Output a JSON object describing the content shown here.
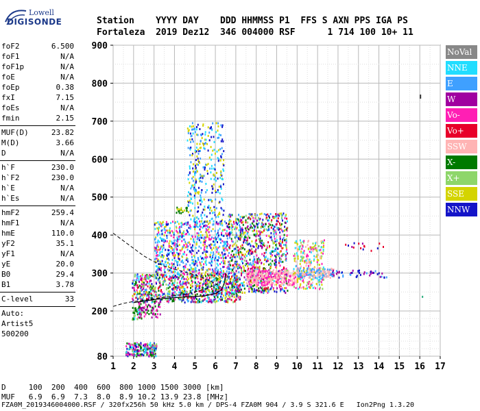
{
  "logo": {
    "line1": "Lowell",
    "line2": "DIGISONDE"
  },
  "header": {
    "line1": "Station    YYYY DAY    DDD HHMMSS P1  FFS S AXN PPS IGA PS",
    "line2": "Fortaleza  2019 Dez12  346 004000 RSF      1 714 100 10+ 11"
  },
  "params": {
    "group1": [
      {
        "k": "foF2",
        "v": "6.500"
      },
      {
        "k": "foF1",
        "v": "N/A"
      },
      {
        "k": "foF1p",
        "v": "N/A"
      },
      {
        "k": "foE",
        "v": "N/A"
      },
      {
        "k": "foEp",
        "v": "0.38"
      },
      {
        "k": "fxI",
        "v": "7.15"
      },
      {
        "k": "foEs",
        "v": "N/A"
      },
      {
        "k": "fmin",
        "v": "2.15"
      }
    ],
    "group2": [
      {
        "k": "MUF(D)",
        "v": "23.82"
      },
      {
        "k": "M(D)",
        "v": "3.66"
      },
      {
        "k": "D",
        "v": "N/A"
      }
    ],
    "group3": [
      {
        "k": "h`F",
        "v": "230.0"
      },
      {
        "k": "h`F2",
        "v": "230.0"
      },
      {
        "k": "h`E",
        "v": "N/A"
      },
      {
        "k": "h`Es",
        "v": "N/A"
      }
    ],
    "group4": [
      {
        "k": "hmF2",
        "v": "259.4"
      },
      {
        "k": "hmF1",
        "v": "N/A"
      },
      {
        "k": "hmE",
        "v": "110.0"
      },
      {
        "k": "yF2",
        "v": "35.1"
      },
      {
        "k": "yF1",
        "v": "N/A"
      },
      {
        "k": "yE",
        "v": "20.0"
      },
      {
        "k": "B0",
        "v": "29.4"
      },
      {
        "k": "B1",
        "v": "3.78"
      }
    ],
    "group5": [
      {
        "k": "C-level",
        "v": "33"
      }
    ],
    "auto": [
      "Auto:",
      "Artist5",
      "500200"
    ]
  },
  "legend": [
    {
      "label": "NoVal",
      "color": "#888888"
    },
    {
      "label": "NNE",
      "color": "#22ddff"
    },
    {
      "label": "E",
      "color": "#3fa0ff"
    },
    {
      "label": "W",
      "color": "#a000a0"
    },
    {
      "label": "Vo-",
      "color": "#ff1fb4"
    },
    {
      "label": "Vo+",
      "color": "#e8002a"
    },
    {
      "label": "SSW",
      "color": "#ffb4b4"
    },
    {
      "label": "X-",
      "color": "#007a00"
    },
    {
      "label": "X+",
      "color": "#8ed66a"
    },
    {
      "label": "SSE",
      "color": "#d4d400"
    },
    {
      "label": "NNW",
      "color": "#1414c8"
    }
  ],
  "chart_data": {
    "type": "scatter",
    "xlim": [
      1,
      17
    ],
    "ylim": [
      80,
      900
    ],
    "x_ticks": [
      "1",
      "2",
      "3",
      "4",
      "5",
      "6",
      "7",
      "8",
      "9",
      "10",
      "11",
      "12",
      "13",
      "14",
      "15",
      "16",
      "17"
    ],
    "y_ticks": [
      "80",
      "200",
      "300",
      "400",
      "500",
      "600",
      "700",
      "800",
      "900"
    ],
    "grid": true,
    "legend_position": "right"
  },
  "bottom": {
    "line1": "D     100  200  400  600  800 1000 1500 3000 [km]",
    "line2": "MUF   6.9  6.9  7.3  8.0  8.9 10.2 13.9 23.8 [MHz]"
  },
  "footer": "FZA0M_2019346004000.RSF / 320fx256h 50 kHz 5.0 km / DPS-4 FZA0M 904 / 3.9 S 321.6 E   Ion2Png 1.3.20"
}
